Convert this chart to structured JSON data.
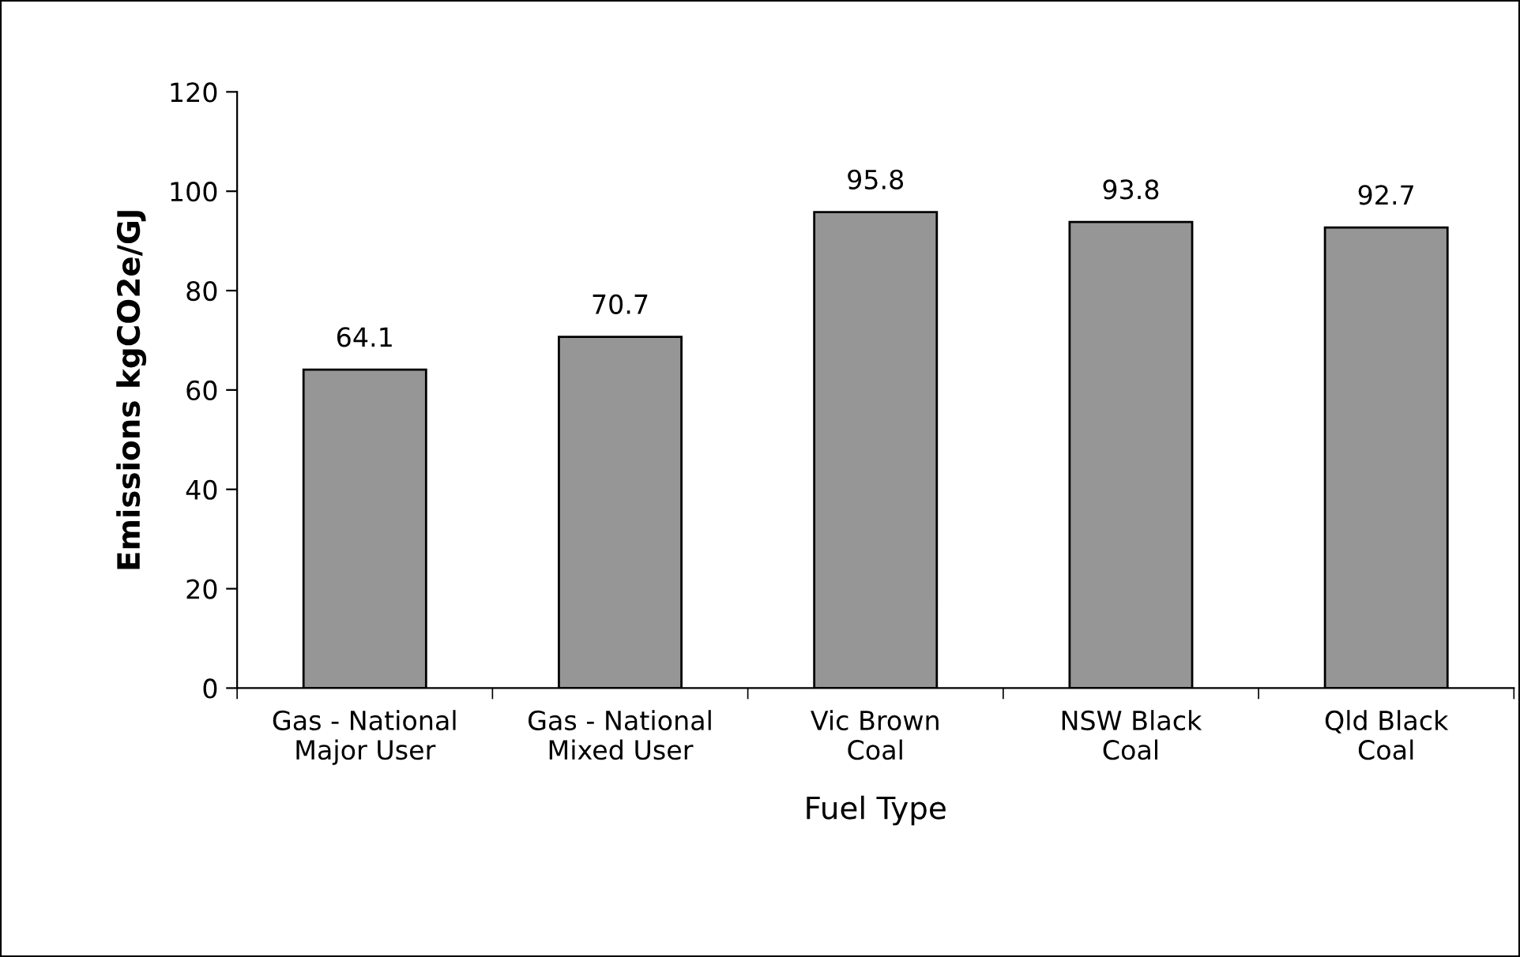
{
  "chart_data": {
    "type": "bar",
    "categories": [
      "Gas - National\nMajor User",
      "Gas - National\nMixed User",
      "Vic Brown\nCoal",
      "NSW Black\nCoal",
      "Qld Black\nCoal"
    ],
    "values": [
      64.1,
      70.7,
      95.8,
      93.8,
      92.7
    ],
    "color": "#969696",
    "xlabel": "Fuel Type",
    "ylabel": "Emissions kgCO2e/GJ",
    "ylim": [
      0,
      120
    ],
    "yticks": [
      0,
      20,
      40,
      60,
      80,
      100,
      120
    ],
    "data_labels": true,
    "grid": false,
    "legend": false
  }
}
